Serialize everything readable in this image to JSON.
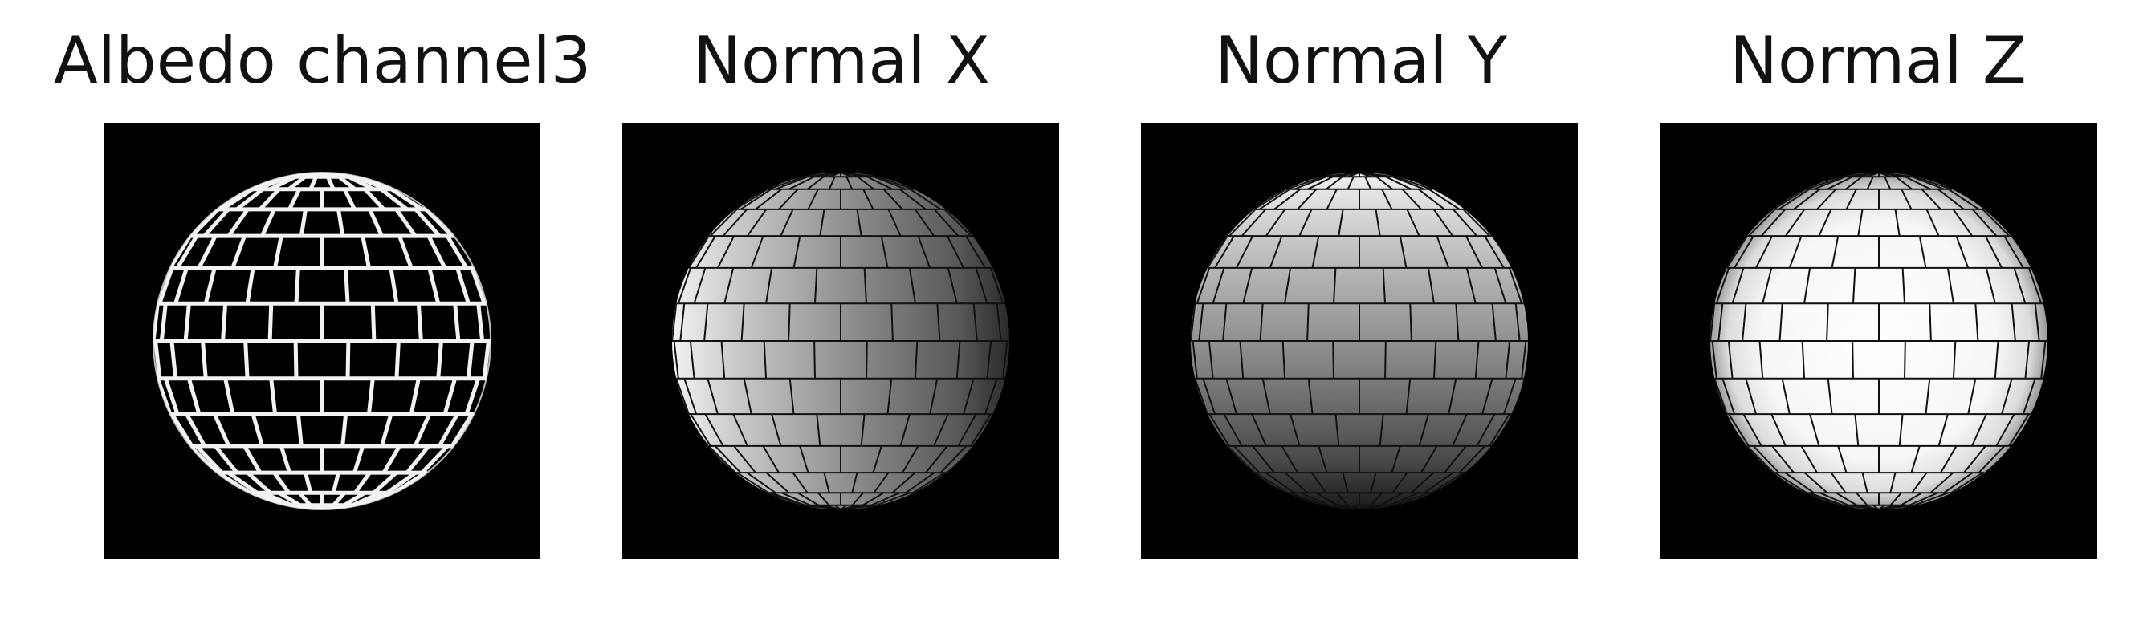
{
  "panels": [
    {
      "title": "Albedo channel3",
      "type": "albedo"
    },
    {
      "title": "Normal X",
      "type": "normal-x"
    },
    {
      "title": "Normal Y",
      "type": "normal-y"
    },
    {
      "title": "Normal Z",
      "type": "normal-z"
    }
  ]
}
